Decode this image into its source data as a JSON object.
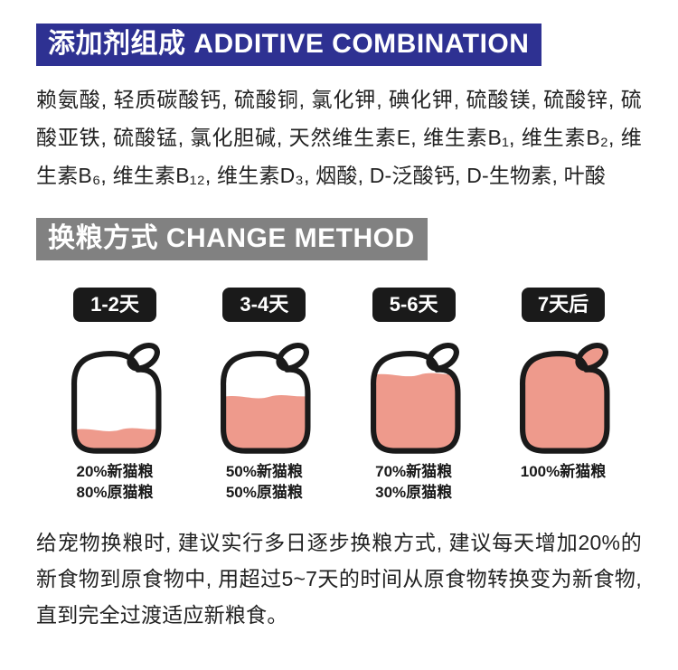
{
  "additive": {
    "title": "添加剂组成 ADDITIVE COMBINATION",
    "body": "赖氨酸, 轻质碳酸钙, 硫酸铜, 氯化钾, 碘化钾, 硫酸镁, 硫酸锌, 硫酸亚铁, 硫酸锰, 氯化胆碱, 天然维生素E, 维生素B₁, 维生素B₂, 维生素B₆, 维生素B₁₂, 维生素D₃, 烟酸, D-泛酸钙, D-生物素, 叶酸"
  },
  "change": {
    "title": "换粮方式 CHANGE METHOD",
    "stages": [
      {
        "day": "1-2天",
        "fill_percent": 20,
        "line1": "20%新猫粮",
        "line2": "80%原猫粮"
      },
      {
        "day": "3-4天",
        "fill_percent": 50,
        "line1": "50%新猫粮",
        "line2": "50%原猫粮"
      },
      {
        "day": "5-6天",
        "fill_percent": 70,
        "line1": "70%新猫粮",
        "line2": "30%原猫粮"
      },
      {
        "day": "7天后",
        "fill_percent": 100,
        "line1": "100%新猫粮",
        "line2": ""
      }
    ],
    "note": "给宠物换粮时, 建议实行多日逐步换粮方式, 建议每天增加20%的新食物到原食物中, 用超过5~7天的时间从原食物转换变为新食物, 直到完全过渡适应新粮食。"
  },
  "colors": {
    "header_blue": "#2e3192",
    "header_gray": "#818181",
    "jar_fill": "#ee9a8c",
    "outline": "#1a1a1a",
    "pill_black": "#1a1a1a"
  }
}
